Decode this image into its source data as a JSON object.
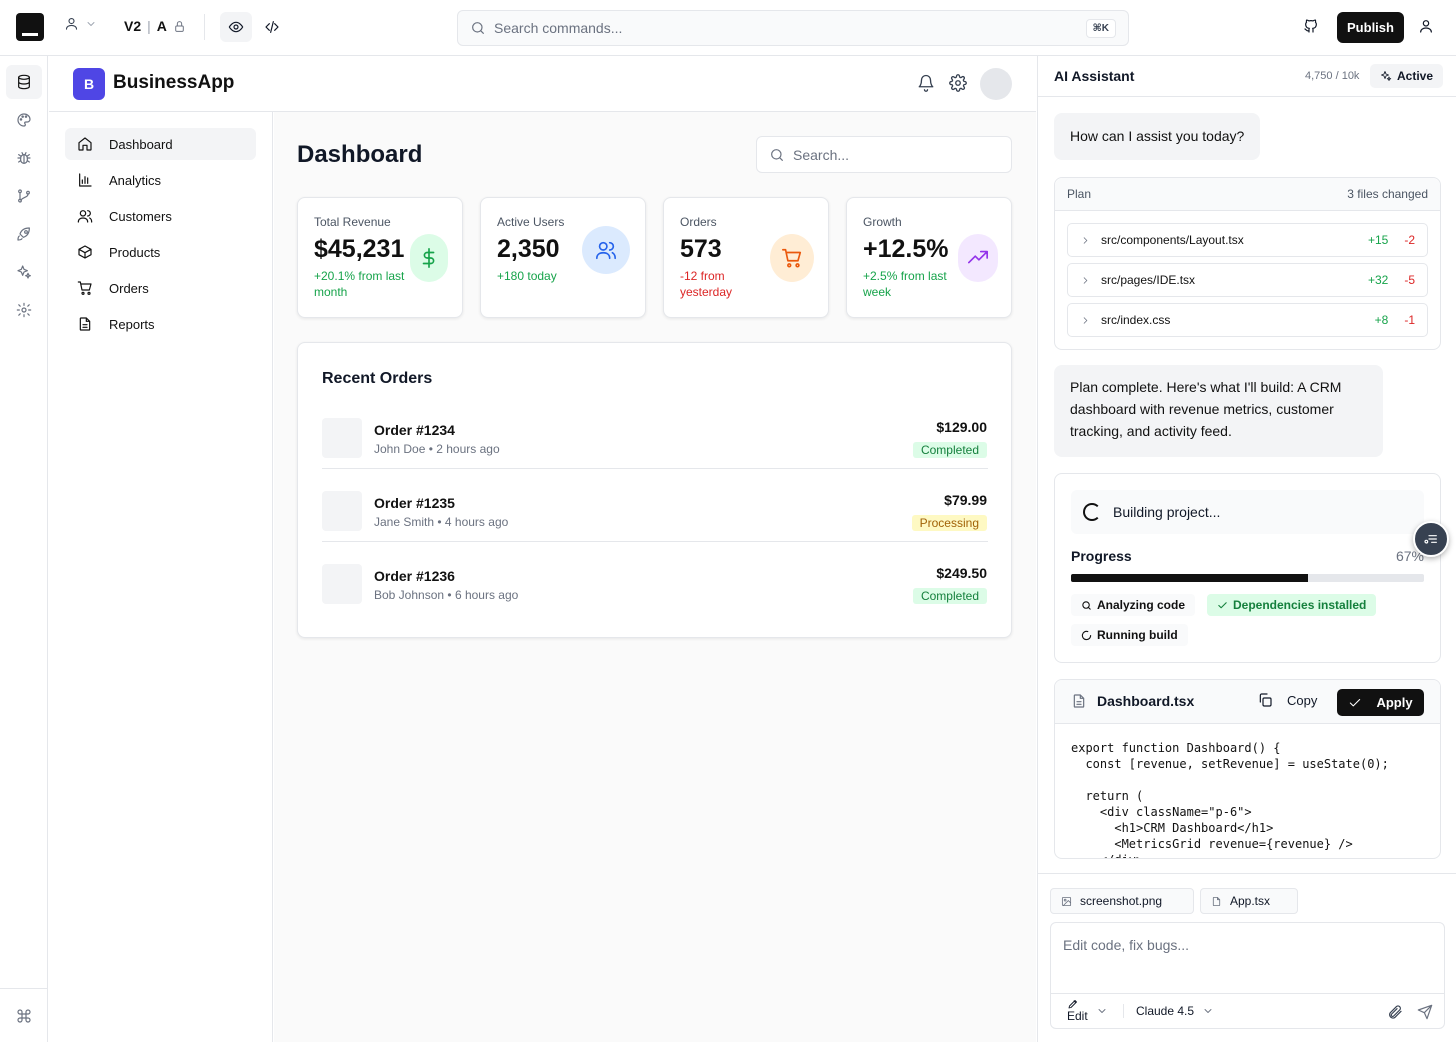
{
  "topbar": {
    "version": "V2",
    "variant": "A",
    "command_search_placeholder": "Search commands...",
    "command_shortcut": "⌘K",
    "publish_label": "Publish"
  },
  "app": {
    "brand_initial": "B",
    "brand_name": "BusinessApp",
    "nav": [
      {
        "label": "Dashboard",
        "icon": "home-icon",
        "active": true
      },
      {
        "label": "Analytics",
        "icon": "bar-chart-icon"
      },
      {
        "label": "Customers",
        "icon": "users-icon"
      },
      {
        "label": "Products",
        "icon": "box-icon"
      },
      {
        "label": "Orders",
        "icon": "cart-icon"
      },
      {
        "label": "Reports",
        "icon": "file-icon"
      }
    ],
    "page_title": "Dashboard",
    "search_placeholder": "Search...",
    "stats": [
      {
        "label": "Total Revenue",
        "value": "$45,231",
        "sub": "+20.1% from last month",
        "trend": "up",
        "icon": "dollar-icon",
        "color": "#16a34a",
        "bg": "#dcfce7"
      },
      {
        "label": "Active Users",
        "value": "2,350",
        "sub": "+180 today",
        "trend": "up",
        "icon": "users-icon",
        "color": "#2563eb",
        "bg": "#dbeafe"
      },
      {
        "label": "Orders",
        "value": "573",
        "sub": "-12 from yesterday",
        "trend": "down",
        "icon": "cart-icon",
        "color": "#ea580c",
        "bg": "#ffedd5"
      },
      {
        "label": "Growth",
        "value": "+12.5%",
        "sub": "+2.5% from last week",
        "trend": "up",
        "icon": "trending-up-icon",
        "color": "#9333ea",
        "bg": "#f3e8ff"
      }
    ],
    "recent_orders_title": "Recent Orders",
    "orders": [
      {
        "id": "Order #1234",
        "customer": "John Doe",
        "time": "2 hours ago",
        "amount": "$129.00",
        "status": "Completed"
      },
      {
        "id": "Order #1235",
        "customer": "Jane Smith",
        "time": "4 hours ago",
        "amount": "$79.99",
        "status": "Processing"
      },
      {
        "id": "Order #1236",
        "customer": "Bob Johnson",
        "time": "6 hours ago",
        "amount": "$249.50",
        "status": "Completed"
      }
    ]
  },
  "assistant": {
    "title": "AI Assistant",
    "tokens": "4,750 / 10k",
    "status": "Active",
    "greeting": "How can I assist you today?",
    "plan": {
      "label": "Plan",
      "summary": "3 files changed",
      "files": [
        {
          "path": "src/components/Layout.tsx",
          "adds": "+15",
          "dels": "-2"
        },
        {
          "path": "src/pages/IDE.tsx",
          "adds": "+32",
          "dels": "-5"
        },
        {
          "path": "src/index.css",
          "adds": "+8",
          "dels": "-1"
        }
      ]
    },
    "plan_complete": "Plan complete. Here's what I'll build: A CRM dashboard with revenue metrics, customer tracking, and activity feed.",
    "build": {
      "status": "Building project...",
      "progress_label": "Progress",
      "progress_value": 67,
      "progress_text": "67%",
      "steps": [
        {
          "label": "Analyzing code",
          "state": "active",
          "icon": "search-icon"
        },
        {
          "label": "Dependencies installed",
          "state": "done",
          "icon": "check-icon"
        },
        {
          "label": "Running build",
          "state": "pending",
          "icon": "loader-icon"
        }
      ]
    },
    "code": {
      "filename": "Dashboard.tsx",
      "copy_label": "Copy",
      "apply_label": "Apply",
      "content": "export function Dashboard() {\n  const [revenue, setRevenue] = useState(0);\n\n  return (\n    <div className=\"p-6\">\n      <h1>CRM Dashboard</h1>\n      <MetricsGrid revenue={revenue} />\n    </div>"
    },
    "attachments": [
      "screenshot.png",
      "App.tsx"
    ],
    "input_placeholder": "Edit code, fix bugs...",
    "mode": "Edit",
    "model": "Claude 4.5"
  }
}
